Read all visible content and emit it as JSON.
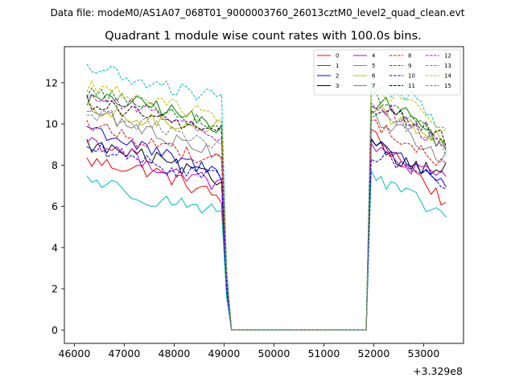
{
  "header": {
    "data_file": "Data file: modeM0/AS1A07_068T01_9000003760_26013cztM0_level2_quad_clean.evt"
  },
  "chart_data": {
    "type": "line",
    "title": "Quadrant 1 module wise count rates with 100.0s bins.",
    "xlabel": "",
    "ylabel": "",
    "x_offset_label": "+3.329e8",
    "xlim": [
      45800,
      53800
    ],
    "ylim": [
      -0.65,
      13.75
    ],
    "xticks": [
      46000,
      47000,
      48000,
      49000,
      50000,
      51000,
      52000,
      53000
    ],
    "xtick_labels": [
      "46000",
      "47000",
      "48000",
      "49000",
      "50000",
      "51000",
      "52000",
      "53000"
    ],
    "yticks": [
      0,
      2,
      4,
      6,
      8,
      10,
      12
    ],
    "ytick_labels": [
      "0",
      "2",
      "4",
      "6",
      "8",
      "10",
      "12"
    ],
    "legend_position": "top-right",
    "segments": [
      {
        "start": 46250,
        "end": 48950
      },
      {
        "start": 51950,
        "end": 53450
      }
    ],
    "drop_x": [
      49050,
      49150
    ],
    "gap_x": [
      49150,
      51850
    ],
    "rise_x": [
      51850,
      51950
    ],
    "series": [
      {
        "name": "0",
        "color": "#ff0000",
        "dash": false,
        "seg1": [
          8.2,
          7.7,
          6.4
        ],
        "seg2": [
          9.5,
          8.0,
          6.1
        ]
      },
      {
        "name": "1",
        "color": "#008000",
        "dash": false,
        "seg1": [
          11.2,
          10.9,
          9.8
        ],
        "seg2": [
          11.2,
          10.5,
          8.8
        ]
      },
      {
        "name": "2",
        "color": "#0000ff",
        "dash": false,
        "seg1": [
          9.9,
          8.6,
          7.6
        ],
        "seg2": [
          9.4,
          8.1,
          7.2
        ]
      },
      {
        "name": "3",
        "color": "#000000",
        "dash": false,
        "seg1": [
          9.0,
          8.3,
          7.2
        ],
        "seg2": [
          9.3,
          8.0,
          7.8
        ]
      },
      {
        "name": "4",
        "color": "#bf00bf",
        "dash": false,
        "seg1": [
          9.3,
          8.0,
          7.0
        ],
        "seg2": [
          8.9,
          7.9,
          7.3
        ]
      },
      {
        "name": "5",
        "color": "#00bfbf",
        "dash": false,
        "seg1": [
          7.4,
          6.3,
          5.9
        ],
        "seg2": [
          7.4,
          6.5,
          5.5
        ]
      },
      {
        "name": "6",
        "color": "#bfbf00",
        "dash": false,
        "seg1": [
          10.6,
          10.1,
          9.9
        ],
        "seg2": [
          10.7,
          10.0,
          9.2
        ]
      },
      {
        "name": "7",
        "color": "#808080",
        "dash": false,
        "seg1": [
          10.7,
          9.5,
          8.6
        ],
        "seg2": [
          10.4,
          9.4,
          8.3
        ]
      },
      {
        "name": "8",
        "color": "#ff0000",
        "dash": true,
        "seg1": [
          10.0,
          9.0,
          8.2
        ],
        "seg2": [
          10.1,
          9.0,
          7.9
        ]
      },
      {
        "name": "9",
        "color": "#008000",
        "dash": true,
        "seg1": [
          11.6,
          10.8,
          9.9
        ],
        "seg2": [
          11.3,
          10.5,
          9.0
        ]
      },
      {
        "name": "10",
        "color": "#0000ff",
        "dash": true,
        "seg1": [
          8.9,
          8.0,
          7.3
        ],
        "seg2": [
          8.6,
          7.9,
          7.0
        ]
      },
      {
        "name": "11",
        "color": "#000000",
        "dash": true,
        "seg1": [
          11.1,
          10.3,
          9.6
        ],
        "seg2": [
          10.8,
          10.2,
          9.2
        ]
      },
      {
        "name": "12",
        "color": "#bf00bf",
        "dash": true,
        "seg1": [
          11.4,
          10.6,
          9.4
        ],
        "seg2": [
          11.0,
          10.2,
          8.6
        ]
      },
      {
        "name": "13",
        "color": "#00bfbf",
        "dash": true,
        "seg1": [
          12.8,
          11.9,
          11.2
        ],
        "seg2": [
          11.8,
          11.4,
          9.7
        ]
      },
      {
        "name": "14",
        "color": "#bfbf00",
        "dash": true,
        "seg1": [
          11.9,
          11.0,
          10.4
        ],
        "seg2": [
          11.6,
          11.0,
          9.8
        ]
      },
      {
        "name": "15",
        "color": "#808080",
        "dash": true,
        "seg1": [
          10.5,
          9.9,
          8.9
        ],
        "seg2": [
          10.7,
          9.8,
          8.7
        ]
      }
    ]
  }
}
